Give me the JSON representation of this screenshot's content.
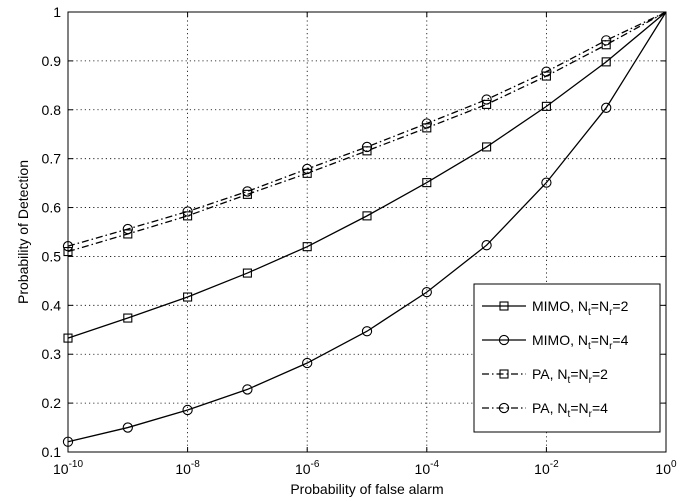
{
  "chart_data": {
    "type": "line",
    "x_scale": "log",
    "xlabel": "Probability of false alarm",
    "ylabel": "Probability of Detection",
    "xlim": [
      1e-10,
      1
    ],
    "ylim": [
      0.1,
      1
    ],
    "grid": true,
    "legend_position": "lower-right",
    "x_ticks": [
      {
        "base": "10",
        "exp": "-10",
        "value": 1e-10
      },
      {
        "base": "10",
        "exp": "-8",
        "value": 1e-08
      },
      {
        "base": "10",
        "exp": "-6",
        "value": 1e-06
      },
      {
        "base": "10",
        "exp": "-4",
        "value": 0.0001
      },
      {
        "base": "10",
        "exp": "-2",
        "value": 0.01
      },
      {
        "base": "10",
        "exp": "0",
        "value": 1
      }
    ],
    "y_ticks": [
      "0.1",
      "0.2",
      "0.3",
      "0.4",
      "0.5",
      "0.6",
      "0.7",
      "0.8",
      "0.9",
      "1"
    ],
    "x": [
      1e-10,
      1e-09,
      1e-08,
      1e-07,
      1e-06,
      1e-05,
      0.0001,
      0.001,
      0.01,
      0.1,
      1
    ],
    "series": [
      {
        "name": "MIMO, N_t=N_r=2",
        "legend": {
          "main": "MIMO, N",
          "s1": "t",
          "mid": "=N",
          "s2": "r",
          "tail": "=2"
        },
        "line_style": "solid",
        "marker": "square",
        "color": "#000000",
        "values": [
          0.333,
          0.374,
          0.417,
          0.466,
          0.52,
          0.583,
          0.651,
          0.724,
          0.807,
          0.898,
          1.0
        ]
      },
      {
        "name": "MIMO, N_t=N_r=4",
        "legend": {
          "main": "MIMO, N",
          "s1": "t",
          "mid": "=N",
          "s2": "r",
          "tail": "=4"
        },
        "line_style": "solid",
        "marker": "circle",
        "color": "#000000",
        "values": [
          0.121,
          0.15,
          0.186,
          0.228,
          0.282,
          0.347,
          0.427,
          0.523,
          0.651,
          0.804,
          1.0
        ]
      },
      {
        "name": "PA, N_t=N_r=2",
        "legend": {
          "main": "PA, N",
          "s1": "t",
          "mid": "=N",
          "s2": "r",
          "tail": "=2"
        },
        "line_style": "dashdot",
        "marker": "square",
        "color": "#000000",
        "values": [
          0.51,
          0.546,
          0.583,
          0.627,
          0.67,
          0.716,
          0.763,
          0.811,
          0.869,
          0.933,
          1.0
        ]
      },
      {
        "name": "PA, N_t=N_r=4",
        "legend": {
          "main": "PA, N",
          "s1": "t",
          "mid": "=N",
          "s2": "r",
          "tail": "=4"
        },
        "line_style": "dashdot",
        "marker": "circle",
        "color": "#000000",
        "values": [
          0.521,
          0.556,
          0.592,
          0.633,
          0.679,
          0.724,
          0.772,
          0.821,
          0.878,
          0.942,
          1.0
        ]
      }
    ]
  }
}
